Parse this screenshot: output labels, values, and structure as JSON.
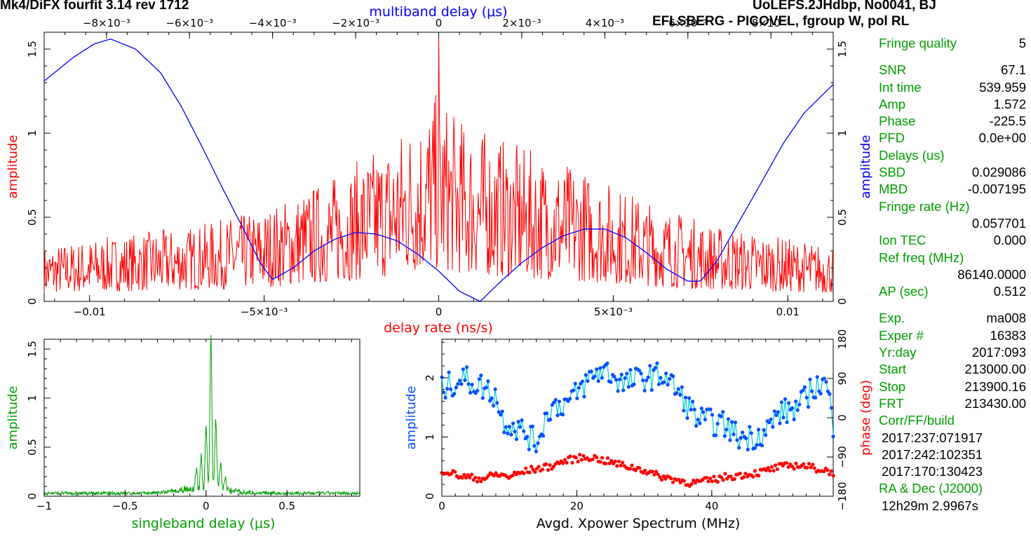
{
  "header": {
    "left_title": "Mk4/DiFX fourfit 3.14 rev 1712",
    "right_title": "UoLEFS.2JHdbp, No0041, BJ",
    "subtitle": "EFLSBERG - PICOVEL, fgroup W, pol RL"
  },
  "side_panel": [
    {
      "label": "Fringe quality",
      "value": "5"
    },
    {
      "gap": true
    },
    {
      "label": "SNR",
      "value": "67.1"
    },
    {
      "label": "Int time",
      "value": "539.959"
    },
    {
      "label": "Amp",
      "value": "1.572"
    },
    {
      "label": "Phase",
      "value": "-225.5"
    },
    {
      "label": "PFD",
      "value": "0.0e+00"
    },
    {
      "label": "Delays (us)"
    },
    {
      "label": "SBD",
      "value": "0.029086"
    },
    {
      "label": "MBD",
      "value": "-0.007195"
    },
    {
      "label": "Fringe rate (Hz)"
    },
    {
      "value": "0.057701"
    },
    {
      "label": "Ion TEC",
      "value": "0.000"
    },
    {
      "label": "Ref freq (MHz)"
    },
    {
      "value": "86140.0000"
    },
    {
      "label": "AP (sec)",
      "value": "0.512"
    },
    {
      "gap": true
    },
    {
      "label": "Exp.",
      "value": "ma008"
    },
    {
      "label": "Exper #",
      "value": "16383"
    },
    {
      "label": "Yr:day",
      "value": "2017:093"
    },
    {
      "label": "Start",
      "value": "213000.00"
    },
    {
      "label": "Stop",
      "value": "213900.16"
    },
    {
      "label": "FRT",
      "value": "213430.00"
    },
    {
      "label": "Corr/FF/build"
    },
    {
      "plain": "2017:237:071917"
    },
    {
      "plain": "2017:242:102351"
    },
    {
      "plain": "2017:170:130423"
    },
    {
      "label": "RA & Dec (J2000)"
    },
    {
      "plain": "12h29m  2.9967s"
    }
  ],
  "colors": {
    "red": "#ff0000",
    "blue": "#0000ff",
    "green": "#009e00",
    "cyan": "#00c8e6",
    "dot_blue": "#0050ff",
    "axis": "#000000"
  },
  "chart_data": [
    {
      "name": "delay-rate-plot",
      "type": "line",
      "xlabel": "delay rate (ns/s)",
      "ylabel": "amplitude",
      "top_xlabel": "multiband delay (μs)",
      "right_ylabel": "amplitude",
      "xlim": [
        -0.0113,
        0.0113
      ],
      "ylim": [
        0,
        1.6
      ],
      "top_xlim": [
        -0.0095,
        0.0095
      ],
      "x_ticks": [
        -0.01,
        -0.005,
        0,
        0.005,
        0.01
      ],
      "x_tick_labels": [
        "−0.01",
        "−5×10⁻³",
        "0",
        "5×10⁻³",
        "0.01"
      ],
      "top_ticks": [
        -0.008,
        -0.006,
        -0.004,
        -0.002,
        0,
        0.002,
        0.004,
        0.006,
        0.008
      ],
      "top_tick_labels": [
        "−8×10⁻³",
        "−6×10⁻³",
        "−4×10⁻³",
        "−2×10⁻³",
        "0",
        "2×10⁻³",
        "4×10⁻³",
        "6×10⁻³",
        "8×10⁻³"
      ],
      "y_ticks": [
        0,
        0.5,
        1,
        1.5
      ],
      "y_tick_labels": [
        "0",
        "0.5",
        "1",
        "1.5"
      ],
      "series": [
        {
          "axis": "top",
          "x": [
            -0.0095,
            -0.0088,
            -0.0083,
            -0.0079,
            -0.0073,
            -0.0067,
            -0.0062,
            -0.0057,
            -0.0052,
            -0.0047,
            -0.0043,
            -0.004,
            -0.0035,
            -0.003,
            -0.0025,
            -0.002,
            -0.0015,
            -0.001,
            -0.0005,
            0.0,
            0.0005,
            0.001,
            0.0015,
            0.002,
            0.0025,
            0.003,
            0.0035,
            0.004,
            0.0045,
            0.005,
            0.0055,
            0.006,
            0.0063,
            0.0067,
            0.0072,
            0.0078,
            0.0083,
            0.0088,
            0.0095
          ],
          "values": [
            1.31,
            1.45,
            1.53,
            1.56,
            1.5,
            1.36,
            1.16,
            0.92,
            0.67,
            0.43,
            0.23,
            0.13,
            0.2,
            0.3,
            0.37,
            0.41,
            0.4,
            0.36,
            0.28,
            0.18,
            0.06,
            0.0,
            0.12,
            0.23,
            0.32,
            0.39,
            0.43,
            0.43,
            0.38,
            0.29,
            0.19,
            0.12,
            0.12,
            0.24,
            0.46,
            0.72,
            0.94,
            1.12,
            1.29
          ]
        }
      ],
      "noise_envelope": {
        "x": [
          -0.0113,
          -0.009,
          -0.007,
          -0.005,
          -0.003,
          -0.0015,
          -0.0005,
          0.0,
          0.0005,
          0.002,
          0.004,
          0.006,
          0.008,
          0.0113
        ],
        "values": [
          0.33,
          0.4,
          0.45,
          0.55,
          0.75,
          0.95,
          1.15,
          1.25,
          1.1,
          0.95,
          0.8,
          0.6,
          0.45,
          0.33
        ]
      },
      "peak": {
        "x": 0.0,
        "value": 1.57
      }
    },
    {
      "name": "singleband-delay-plot",
      "type": "line",
      "xlabel": "singleband delay (μs)",
      "ylabel": "amplitude",
      "xlim": [
        -1.0,
        0.95
      ],
      "ylim": [
        0,
        1.6
      ],
      "x_ticks": [
        -1,
        -0.5,
        0,
        0.5
      ],
      "x_tick_labels": [
        "−1",
        "−0.5",
        "0",
        "0.5"
      ],
      "y_ticks": [
        0,
        0.5,
        1,
        1.5
      ],
      "y_tick_labels": [
        "0",
        "0.5",
        "1",
        "1.5"
      ],
      "peaks": [
        {
          "x": 0.03,
          "value": 1.55
        },
        {
          "x": 0.0,
          "value": 0.65
        },
        {
          "x": 0.06,
          "value": 0.7
        },
        {
          "x": -0.03,
          "value": 0.32
        },
        {
          "x": 0.09,
          "value": 0.28
        },
        {
          "x": -0.06,
          "value": 0.2
        },
        {
          "x": 0.12,
          "value": 0.14
        }
      ],
      "baseline": 0.03
    },
    {
      "name": "xpower-spectrum-plot",
      "type": "scatter",
      "xlabel": "Avgd. Xpower Spectrum (MHz)",
      "ylabel": "amplitude",
      "right_ylabel": "phase (deg)",
      "xlim": [
        0,
        58
      ],
      "ylim": [
        0,
        2.65
      ],
      "phase_lim": [
        -180,
        180
      ],
      "x_ticks": [
        0,
        20,
        40
      ],
      "x_tick_labels": [
        "0",
        "20",
        "40"
      ],
      "y_ticks": [
        0,
        1,
        2
      ],
      "y_tick_labels": [
        "0",
        "1",
        "2"
      ],
      "phase_ticks": [
        -180,
        -90,
        0,
        90,
        180
      ],
      "phase_tick_labels": [
        "−180",
        "−90",
        "0",
        "90",
        "180"
      ],
      "series": [
        {
          "kind": "amplitude",
          "x": [
            0,
            3,
            6,
            8,
            9,
            12,
            14,
            16,
            19,
            22,
            24,
            27,
            30,
            33,
            36,
            38,
            40,
            42,
            44,
            46,
            48,
            50,
            53,
            55,
            57,
            58
          ],
          "values": [
            1.8,
            2.0,
            1.85,
            1.7,
            1.3,
            1.1,
            0.9,
            1.5,
            1.6,
            2.0,
            2.15,
            1.9,
            2.0,
            2.05,
            1.6,
            1.3,
            1.25,
            1.2,
            1.0,
            1.0,
            1.1,
            1.4,
            1.5,
            1.85,
            1.9,
            1.2
          ]
        },
        {
          "kind": "phase",
          "x": [
            0,
            3,
            6,
            8,
            10,
            13,
            16,
            18,
            20,
            22,
            24,
            27,
            30,
            32,
            35,
            37,
            40,
            42,
            44,
            47,
            50,
            53,
            56,
            58
          ],
          "values": [
            -120,
            -135,
            -140,
            -130,
            -135,
            -120,
            -112,
            -100,
            -93,
            -90,
            -98,
            -110,
            -120,
            -133,
            -143,
            -150,
            -143,
            -136,
            -132,
            -126,
            -113,
            -108,
            -118,
            -125
          ]
        }
      ]
    }
  ]
}
